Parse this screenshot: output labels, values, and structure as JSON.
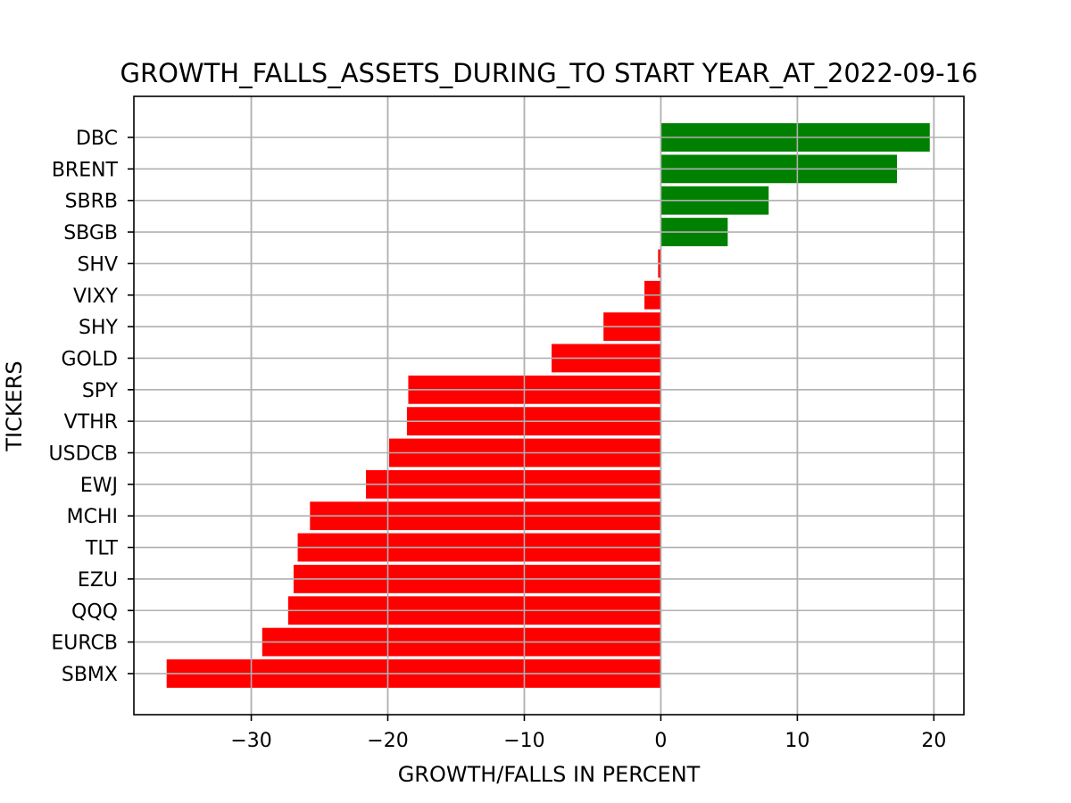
{
  "chart_data": {
    "type": "bar",
    "orientation": "horizontal",
    "title": "GROWTH_FALLS_ASSETS_DURING_TO START YEAR_AT_2022-09-16",
    "xlabel": "GROWTH/FALLS IN PERCENT",
    "ylabel": "TICKERS",
    "categories": [
      "DBC",
      "BRENT",
      "SBRB",
      "SBGB",
      "SHV",
      "VIXY",
      "SHY",
      "GOLD",
      "SPY",
      "VTHR",
      "USDCB",
      "EWJ",
      "MCHI",
      "TLT",
      "EZU",
      "QQQ",
      "EURCB",
      "SBMX"
    ],
    "values": [
      19.7,
      17.3,
      7.9,
      4.9,
      -0.2,
      -1.2,
      -4.2,
      -8.0,
      -18.5,
      -18.6,
      -19.9,
      -21.6,
      -25.7,
      -26.6,
      -26.9,
      -27.3,
      -29.2,
      -36.2
    ],
    "xlim": [
      -38.6,
      22.2
    ],
    "xticks": [
      -30,
      -20,
      -10,
      0,
      10,
      20
    ],
    "xtick_labels": [
      "−30",
      "−20",
      "−10",
      "0",
      "10",
      "20"
    ],
    "grid": true,
    "positive_color": "#008000",
    "negative_color": "#ff0000"
  }
}
